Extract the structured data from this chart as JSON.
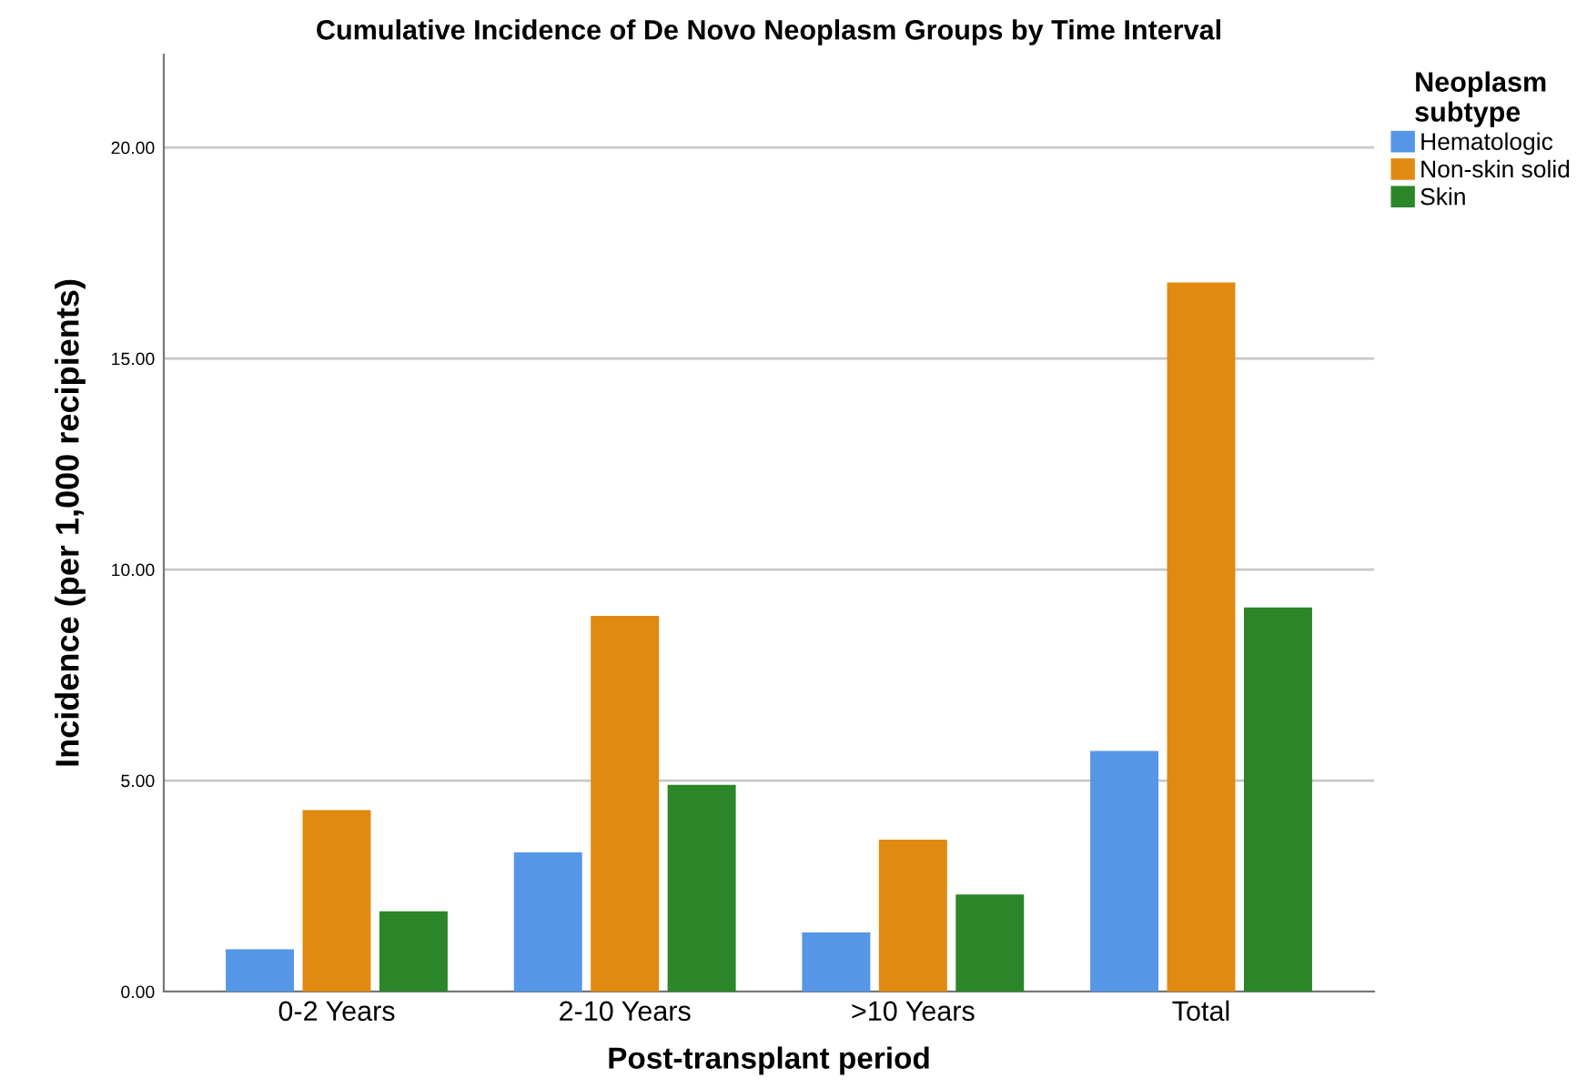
{
  "chart_data": {
    "type": "bar",
    "title": "Cumulative Incidence of De Novo Neoplasm Groups by Time Interval",
    "xlabel": "Post-transplant period",
    "ylabel": "Incidence (per 1,000 recipients)",
    "legend_title": "Neoplasm\nsubtype",
    "categories": [
      "0-2 Years",
      "2-10 Years",
      ">10 Years",
      "Total"
    ],
    "series": [
      {
        "name": "Hematologic",
        "color": "#5596e6",
        "values": [
          1.0,
          3.3,
          1.4,
          5.7
        ]
      },
      {
        "name": "Non-skin solid",
        "color": "#e08a12",
        "values": [
          4.3,
          8.9,
          3.6,
          16.8
        ]
      },
      {
        "name": "Skin",
        "color": "#2a8628",
        "values": [
          1.9,
          4.9,
          2.3,
          9.1
        ]
      }
    ],
    "ylim": [
      0,
      22.2
    ],
    "yticks": [
      {
        "value": 0,
        "label": "0.00"
      },
      {
        "value": 5,
        "label": "5.00"
      },
      {
        "value": 10,
        "label": "10.00"
      },
      {
        "value": 15,
        "label": "15.00"
      },
      {
        "value": 20,
        "label": "20.00"
      }
    ],
    "grid": "y",
    "legend": "top right"
  }
}
